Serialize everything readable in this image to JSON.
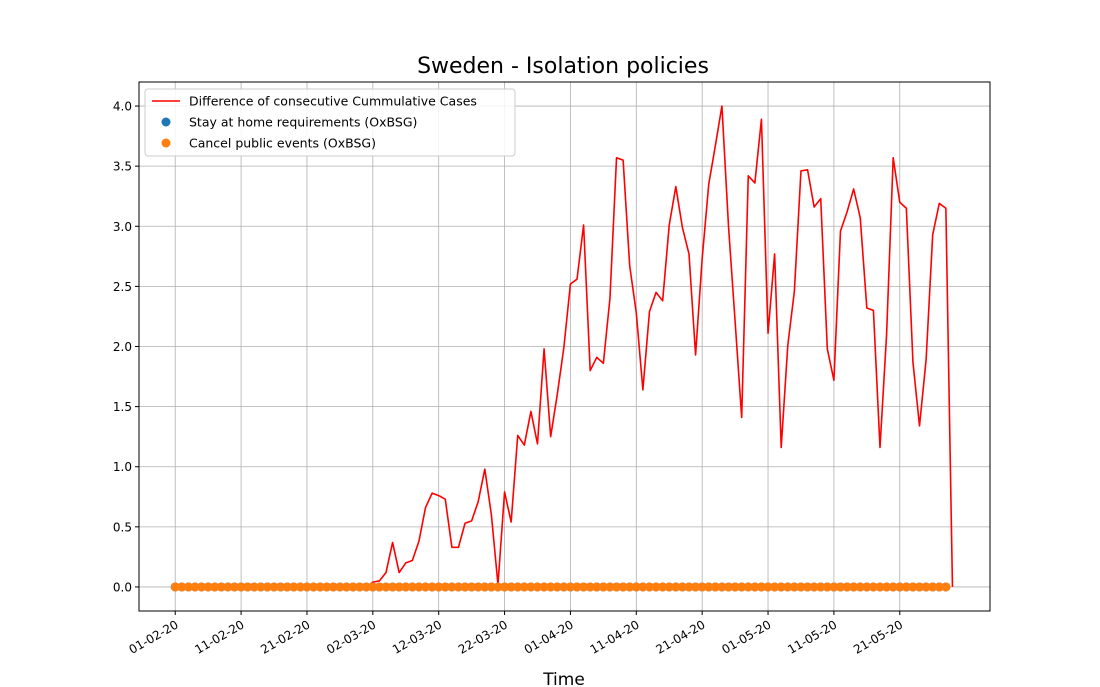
{
  "chart_data": {
    "type": "line",
    "title": "Sweden - Isolation policies",
    "xlabel": "Time",
    "ylabel": "",
    "ylim": [
      -0.2,
      4.2
    ],
    "yticks": [
      "0.0",
      "0.5",
      "1.0",
      "1.5",
      "2.0",
      "2.5",
      "3.0",
      "3.5",
      "4.0"
    ],
    "xticks": [
      "01-02-20",
      "11-02-20",
      "21-02-20",
      "02-03-20",
      "12-03-20",
      "22-03-20",
      "01-04-20",
      "11-04-20",
      "21-04-20",
      "01-05-20",
      "11-05-20",
      "21-05-20"
    ],
    "grid": true,
    "legend_position": "top-left",
    "start_date": "01-02-20",
    "series": [
      {
        "name": "Difference of consecutive Cummulative Cases",
        "kind": "line",
        "color": "#ff0000",
        "x": [
          "01-02-20",
          "02-02-20",
          "03-02-20",
          "04-02-20",
          "05-02-20",
          "06-02-20",
          "07-02-20",
          "08-02-20",
          "09-02-20",
          "10-02-20",
          "11-02-20",
          "12-02-20",
          "13-02-20",
          "14-02-20",
          "15-02-20",
          "16-02-20",
          "17-02-20",
          "18-02-20",
          "19-02-20",
          "20-02-20",
          "21-02-20",
          "22-02-20",
          "23-02-20",
          "24-02-20",
          "25-02-20",
          "26-02-20",
          "27-02-20",
          "28-02-20",
          "29-02-20",
          "01-03-20",
          "02-03-20",
          "03-03-20",
          "04-03-20",
          "05-03-20",
          "06-03-20",
          "07-03-20",
          "08-03-20",
          "09-03-20",
          "10-03-20",
          "11-03-20",
          "12-03-20",
          "13-03-20",
          "14-03-20",
          "15-03-20",
          "16-03-20",
          "17-03-20",
          "18-03-20",
          "19-03-20",
          "20-03-20",
          "21-03-20",
          "22-03-20",
          "23-03-20",
          "24-03-20",
          "25-03-20",
          "26-03-20",
          "27-03-20",
          "28-03-20",
          "29-03-20",
          "30-03-20",
          "31-03-20",
          "01-04-20",
          "02-04-20",
          "03-04-20",
          "04-04-20",
          "05-04-20",
          "06-04-20",
          "07-04-20",
          "08-04-20",
          "09-04-20",
          "10-04-20",
          "11-04-20",
          "12-04-20",
          "13-04-20",
          "14-04-20",
          "15-04-20",
          "16-04-20",
          "17-04-20",
          "18-04-20",
          "19-04-20",
          "20-04-20",
          "21-04-20",
          "22-04-20",
          "23-04-20",
          "24-04-20",
          "25-04-20",
          "26-04-20",
          "27-04-20",
          "28-04-20",
          "29-04-20",
          "30-04-20",
          "01-05-20",
          "02-05-20",
          "03-05-20",
          "04-05-20",
          "05-05-20",
          "06-05-20",
          "07-05-20",
          "08-05-20",
          "09-05-20",
          "10-05-20",
          "11-05-20",
          "12-05-20",
          "13-05-20",
          "14-05-20",
          "15-05-20",
          "16-05-20",
          "17-05-20",
          "18-05-20",
          "19-05-20",
          "20-05-20",
          "21-05-20",
          "22-05-20",
          "23-05-20",
          "24-05-20",
          "25-05-20",
          "26-05-20",
          "27-05-20",
          "28-05-20",
          "29-05-20"
        ],
        "y": [
          0,
          0,
          0,
          0,
          0,
          0,
          0,
          0,
          0,
          0,
          0,
          0,
          0,
          0,
          0,
          0,
          0,
          0,
          0,
          0,
          0,
          0,
          0,
          0,
          0,
          0,
          0,
          0,
          0,
          0,
          0.04,
          0.05,
          0.12,
          0.37,
          0.12,
          0.2,
          0.22,
          0.38,
          0.66,
          0.78,
          0.76,
          0.73,
          0.33,
          0.33,
          0.53,
          0.55,
          0.71,
          0.98,
          0.6,
          0.02,
          0.79,
          0.54,
          1.26,
          1.18,
          1.46,
          1.19,
          1.98,
          1.25,
          1.6,
          1.99,
          2.52,
          2.56,
          3.01,
          1.8,
          1.91,
          1.86,
          2.4,
          3.57,
          3.55,
          2.67,
          2.28,
          1.64,
          2.29,
          2.45,
          2.38,
          3.01,
          3.33,
          2.99,
          2.77,
          1.93,
          2.73,
          3.35,
          3.67,
          4.0,
          3.0,
          2.21,
          1.41,
          3.42,
          3.36,
          3.89,
          2.11,
          2.77,
          1.16,
          2.01,
          2.46,
          3.46,
          3.47,
          3.16,
          3.23,
          1.98,
          1.72,
          2.96,
          3.12,
          3.31,
          3.07,
          2.32,
          2.3,
          1.16,
          2.1,
          3.57,
          3.2,
          3.15,
          1.87,
          1.34,
          1.89,
          2.93,
          3.19,
          3.15,
          0.0
        ]
      },
      {
        "name": "Stay at home requirements (OxBSG)",
        "kind": "scatter",
        "color": "#1f77b4",
        "x": "same dates as above",
        "y_constant": 0
      },
      {
        "name": "Cancel public events (OxBSG)",
        "kind": "scatter",
        "color": "#ff7f0e",
        "x": "same dates as above",
        "y_constant": 0
      }
    ]
  }
}
